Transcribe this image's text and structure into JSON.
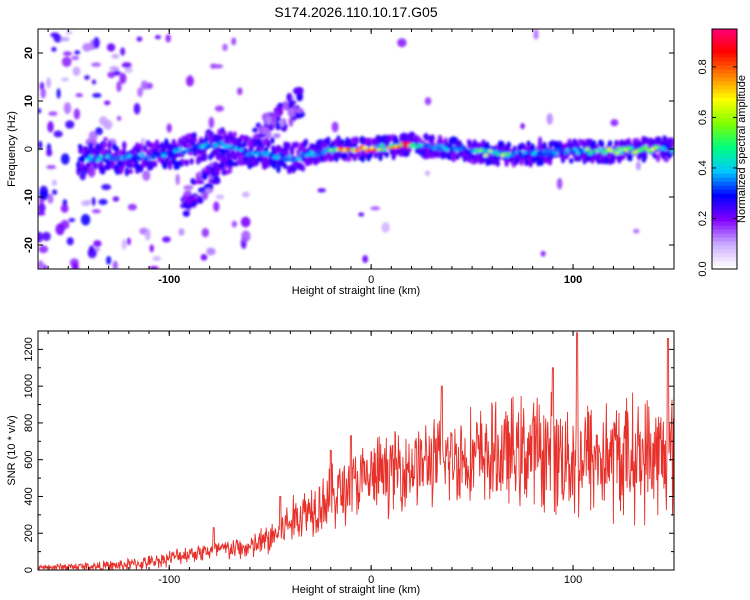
{
  "title": "S174.2026.110.10.17.G05",
  "chart_data": [
    {
      "type": "heatmap",
      "name": "spectrogram",
      "xlabel": "Height of straight line (km)",
      "ylabel": "Frequency (Hz)",
      "xlim": [
        -165,
        150
      ],
      "ylim": [
        -25,
        25
      ],
      "xticks": [
        -100,
        0,
        100
      ],
      "yticks": [
        -20,
        -10,
        0,
        10,
        20
      ],
      "colorbar": {
        "label": "Normalized spectral amplitude",
        "range": [
          0.0,
          0.95
        ],
        "ticks": [
          0.0,
          0.2,
          0.4,
          0.6,
          0.8
        ],
        "tick_labels": [
          "0.0",
          "0.2",
          "0.4",
          "0.6",
          "0.8"
        ],
        "colors": [
          "#ffffff",
          "#c8a8ff",
          "#8000ff",
          "#0000ff",
          "#00c8ff",
          "#00ff80",
          "#80ff00",
          "#ffff00",
          "#ff8000",
          "#ff0000",
          "#ff0080"
        ]
      },
      "ridge": [
        [
          -140,
          -2
        ],
        [
          -120,
          -2
        ],
        [
          -100,
          -1
        ],
        [
          -90,
          0
        ],
        [
          -80,
          1
        ],
        [
          -70,
          1
        ],
        [
          -60,
          -1
        ],
        [
          -50,
          -1
        ],
        [
          -40,
          -2
        ],
        [
          -30,
          -1
        ],
        [
          -20,
          0
        ],
        [
          -10,
          0
        ],
        [
          0,
          0
        ],
        [
          10,
          0.5
        ],
        [
          20,
          1
        ],
        [
          30,
          0.5
        ],
        [
          40,
          0
        ],
        [
          60,
          -1
        ],
        [
          80,
          -1
        ],
        [
          100,
          -0.5
        ],
        [
          120,
          -0.5
        ],
        [
          140,
          0
        ],
        [
          150,
          0
        ]
      ],
      "hot_segments": [
        [
          -20,
          25
        ],
        [
          50,
          70
        ],
        [
          105,
          145
        ]
      ]
    },
    {
      "type": "line",
      "name": "snr",
      "xlabel": "Height of straight line (km)",
      "ylabel": "SNR (10 * v/v)",
      "xlim": [
        -165,
        150
      ],
      "ylim": [
        0,
        1300
      ],
      "xticks": [
        -100,
        0,
        100
      ],
      "yticks": [
        0,
        200,
        400,
        600,
        800,
        1000,
        1200
      ],
      "color": "#e8302a",
      "envelope": [
        [
          -165,
          15
        ],
        [
          -130,
          20
        ],
        [
          -110,
          40
        ],
        [
          -90,
          90
        ],
        [
          -75,
          110
        ],
        [
          -60,
          120
        ],
        [
          -50,
          170
        ],
        [
          -40,
          260
        ],
        [
          -30,
          340
        ],
        [
          -20,
          400
        ],
        [
          -10,
          450
        ],
        [
          0,
          500
        ],
        [
          10,
          540
        ],
        [
          20,
          570
        ],
        [
          30,
          590
        ],
        [
          40,
          610
        ],
        [
          60,
          620
        ],
        [
          80,
          650
        ],
        [
          100,
          620
        ],
        [
          120,
          610
        ],
        [
          140,
          620
        ],
        [
          150,
          600
        ]
      ],
      "spread": [
        [
          -165,
          20
        ],
        [
          -100,
          50
        ],
        [
          -60,
          80
        ],
        [
          -40,
          150
        ],
        [
          -20,
          220
        ],
        [
          0,
          250
        ],
        [
          30,
          280
        ],
        [
          60,
          330
        ],
        [
          100,
          400
        ],
        [
          150,
          400
        ]
      ],
      "peaks": [
        [
          -78,
          230
        ],
        [
          -45,
          400
        ],
        [
          -20,
          650
        ],
        [
          -10,
          730
        ],
        [
          35,
          1000
        ],
        [
          90,
          1100
        ],
        [
          102,
          1290
        ],
        [
          147,
          1260
        ]
      ]
    }
  ]
}
